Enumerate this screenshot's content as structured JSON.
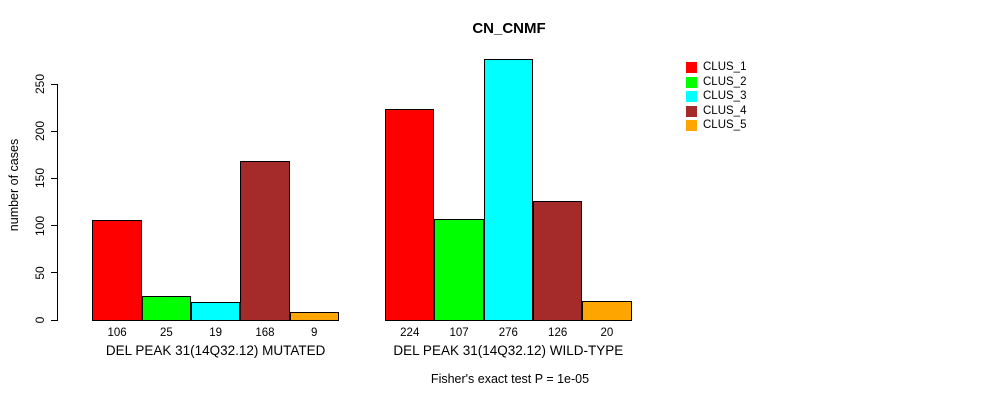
{
  "chart_data": {
    "type": "bar",
    "title": "CN_CNMF",
    "ylabel": "number of cases",
    "xlabel": "",
    "categories": [
      "DEL PEAK 31(14Q32.12) MUTATED",
      "DEL PEAK 31(14Q32.12) WILD-TYPE"
    ],
    "series": [
      {
        "name": "CLUS_1",
        "color": "#FF0000",
        "values": [
          106,
          224
        ]
      },
      {
        "name": "CLUS_2",
        "color": "#00FF00",
        "values": [
          25,
          107
        ]
      },
      {
        "name": "CLUS_3",
        "color": "#00FFFF",
        "values": [
          19,
          276
        ]
      },
      {
        "name": "CLUS_4",
        "color": "#A52A2A",
        "values": [
          168,
          126
        ]
      },
      {
        "name": "CLUS_5",
        "color": "#FFA500",
        "values": [
          9,
          20
        ]
      }
    ],
    "yticks": [
      0,
      50,
      100,
      150,
      200,
      250
    ],
    "ylim": [
      0,
      280
    ],
    "grid": false,
    "legend_position": "right",
    "bar_borders": "#000000",
    "annotation": "Fisher's exact test P = 1e-05"
  }
}
